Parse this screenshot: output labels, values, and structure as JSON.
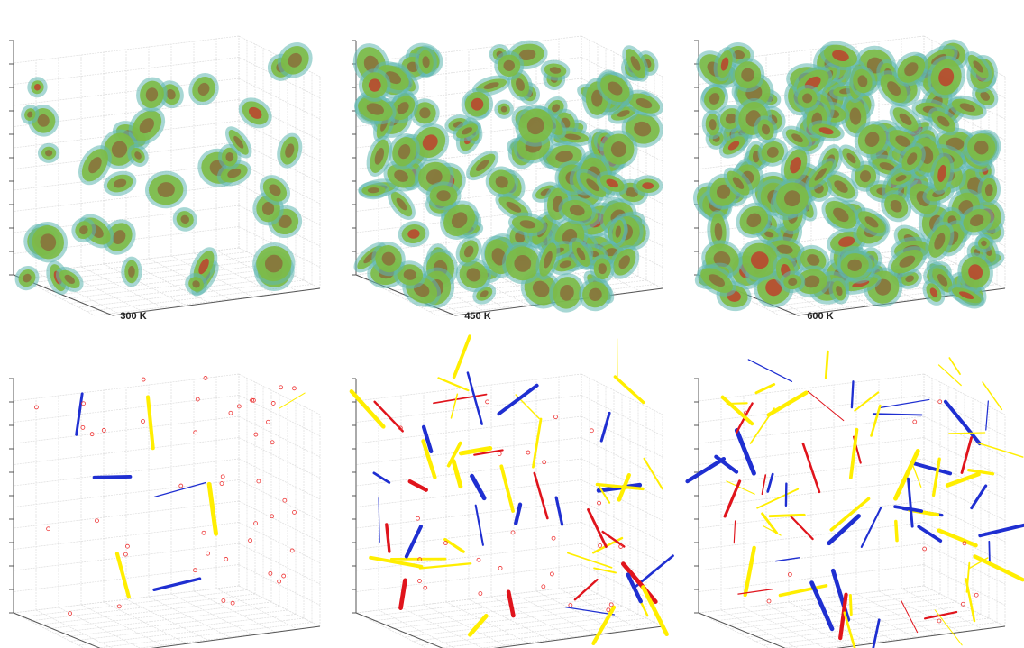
{
  "panels": {
    "labels": [
      "300 K",
      "450 K",
      "600 K"
    ]
  }
}
